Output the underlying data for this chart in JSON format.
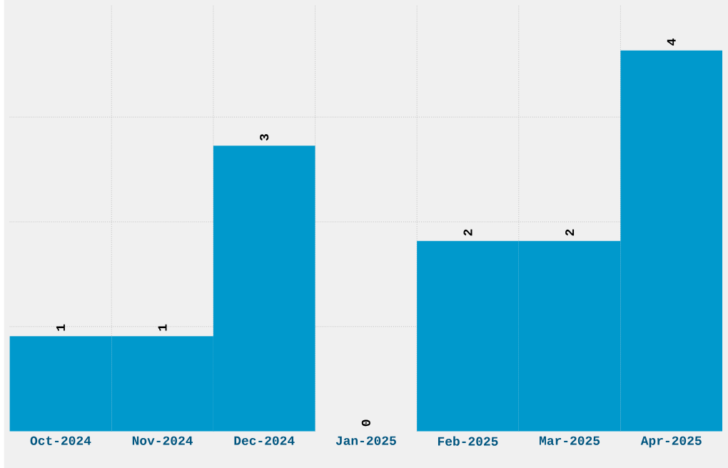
{
  "chart_data": {
    "type": "bar",
    "categories": [
      "Oct-2024",
      "Nov-2024",
      "Dec-2024",
      "Jan-2025",
      "Feb-2025",
      "Mar-2025",
      "Apr-2025"
    ],
    "values": [
      1,
      1,
      3,
      0,
      2,
      2,
      4
    ],
    "color": "#0099cc",
    "data_labels": true,
    "grid": true,
    "tick_labels": "x",
    "ylim": [
      0,
      4.47
    ],
    "yticks": [
      {
        "value": 1.1,
        "label": null
      },
      {
        "value": 2.2,
        "label": null
      },
      {
        "value": 3.3,
        "label": null
      }
    ]
  }
}
